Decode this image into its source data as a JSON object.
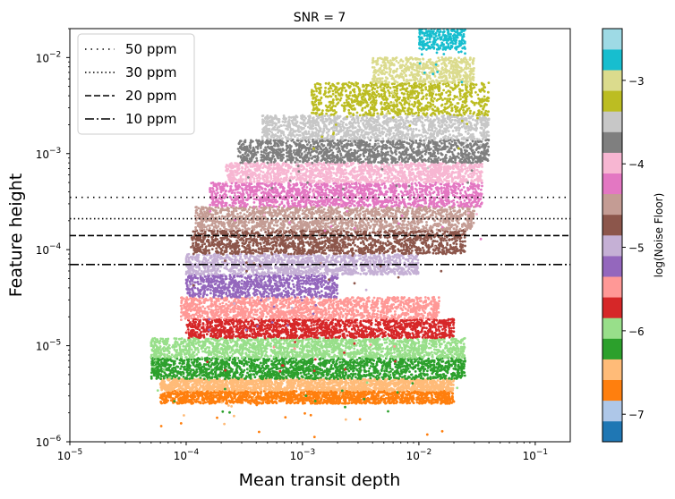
{
  "chart_data": {
    "type": "scatter",
    "title": "SNR = 7",
    "xlabel": "Mean transit depth",
    "ylabel": "Feature height",
    "xscale": "log",
    "yscale": "log",
    "xlim": [
      1e-05,
      0.2
    ],
    "ylim": [
      1e-06,
      0.02
    ],
    "x_ticks": [
      {
        "value": 1e-05,
        "base": "10",
        "exp": "−5"
      },
      {
        "value": 0.0001,
        "base": "10",
        "exp": "−4"
      },
      {
        "value": 0.001,
        "base": "10",
        "exp": "−3"
      },
      {
        "value": 0.01,
        "base": "10",
        "exp": "−2"
      },
      {
        "value": 0.1,
        "base": "10",
        "exp": "−1"
      }
    ],
    "y_ticks": [
      {
        "value": 1e-06,
        "base": "10",
        "exp": "−6"
      },
      {
        "value": 1e-05,
        "base": "10",
        "exp": "−5"
      },
      {
        "value": 0.0001,
        "base": "10",
        "exp": "−4"
      },
      {
        "value": 0.001,
        "base": "10",
        "exp": "−3"
      },
      {
        "value": 0.01,
        "base": "10",
        "exp": "−2"
      }
    ],
    "reference_lines": [
      {
        "label": "50 ppm",
        "value": 0.00035,
        "style": "dotted-sparse"
      },
      {
        "label": "30 ppm",
        "value": 0.00021,
        "style": "dotted"
      },
      {
        "label": "20 ppm",
        "value": 0.00014,
        "style": "dashed"
      },
      {
        "label": "10 ppm",
        "value": 7e-05,
        "style": "dashdot"
      }
    ],
    "legend_position": "upper-left",
    "colorbar": {
      "label": "log(Noise Floor)",
      "range": [
        -7.33,
        -2.38
      ],
      "ticks": [
        {
          "value": -3,
          "label": "−3"
        },
        {
          "value": -4,
          "label": "−4"
        },
        {
          "value": -5,
          "label": "−5"
        },
        {
          "value": -6,
          "label": "−6"
        },
        {
          "value": -7,
          "label": "−7"
        }
      ],
      "colors": [
        "#1f77b4",
        "#aec7e8",
        "#ff7f0e",
        "#ffbb78",
        "#2ca02c",
        "#98df8a",
        "#d62728",
        "#ff9896",
        "#9467bd",
        "#c5b0d5",
        "#8c564b",
        "#c49c94",
        "#e377c2",
        "#f7b6d2",
        "#7f7f7f",
        "#c7c7c7",
        "#bcbd22",
        "#dbdb8d",
        "#17becf",
        "#9edae5"
      ]
    },
    "bands": [
      {
        "color": "#ff7f0e",
        "ymin": 2.5e-06,
        "ymax": 3.4e-06,
        "xmin": 6e-05,
        "xmax": 0.02
      },
      {
        "color": "#ffbb78",
        "ymin": 3.4e-06,
        "ymax": 4.5e-06,
        "xmin": 6e-05,
        "xmax": 0.02
      },
      {
        "color": "#2ca02c",
        "ymin": 4.5e-06,
        "ymax": 7.5e-06,
        "xmin": 5e-05,
        "xmax": 0.025
      },
      {
        "color": "#98df8a",
        "ymin": 7.5e-06,
        "ymax": 1.2e-05,
        "xmin": 5e-05,
        "xmax": 0.025
      },
      {
        "color": "#d62728",
        "ymin": 1.2e-05,
        "ymax": 1.9e-05,
        "xmin": 0.0001,
        "xmax": 0.02
      },
      {
        "color": "#ff9896",
        "ymin": 1.9e-05,
        "ymax": 3.2e-05,
        "xmin": 9e-05,
        "xmax": 0.015
      },
      {
        "color": "#9467bd",
        "ymin": 3.2e-05,
        "ymax": 5.5e-05,
        "xmin": 0.0001,
        "xmax": 0.002
      },
      {
        "color": "#c5b0d5",
        "ymin": 5.5e-05,
        "ymax": 9e-05,
        "xmin": 0.0001,
        "xmax": 0.01
      },
      {
        "color": "#8c564b",
        "ymin": 9e-05,
        "ymax": 0.00016,
        "xmin": 0.00011,
        "xmax": 0.025
      },
      {
        "color": "#c49c94",
        "ymin": 0.00016,
        "ymax": 0.00028,
        "xmin": 0.00012,
        "xmax": 0.03
      },
      {
        "color": "#e377c2",
        "ymin": 0.00028,
        "ymax": 0.0005,
        "xmin": 0.00016,
        "xmax": 0.035
      },
      {
        "color": "#f7b6d2",
        "ymin": 0.0005,
        "ymax": 0.0008,
        "xmin": 0.00022,
        "xmax": 0.035
      },
      {
        "color": "#7f7f7f",
        "ymin": 0.0008,
        "ymax": 0.0014,
        "xmin": 0.00028,
        "xmax": 0.04
      },
      {
        "color": "#c7c7c7",
        "ymin": 0.0014,
        "ymax": 0.0025,
        "xmin": 0.00045,
        "xmax": 0.04
      },
      {
        "color": "#bcbd22",
        "ymin": 0.0025,
        "ymax": 0.0055,
        "xmin": 0.0012,
        "xmax": 0.04
      },
      {
        "color": "#dbdb8d",
        "ymin": 0.0055,
        "ymax": 0.01,
        "xmin": 0.004,
        "xmax": 0.03
      },
      {
        "color": "#17becf",
        "ymin": 0.012,
        "ymax": 0.02,
        "xmin": 0.01,
        "xmax": 0.025
      }
    ]
  }
}
